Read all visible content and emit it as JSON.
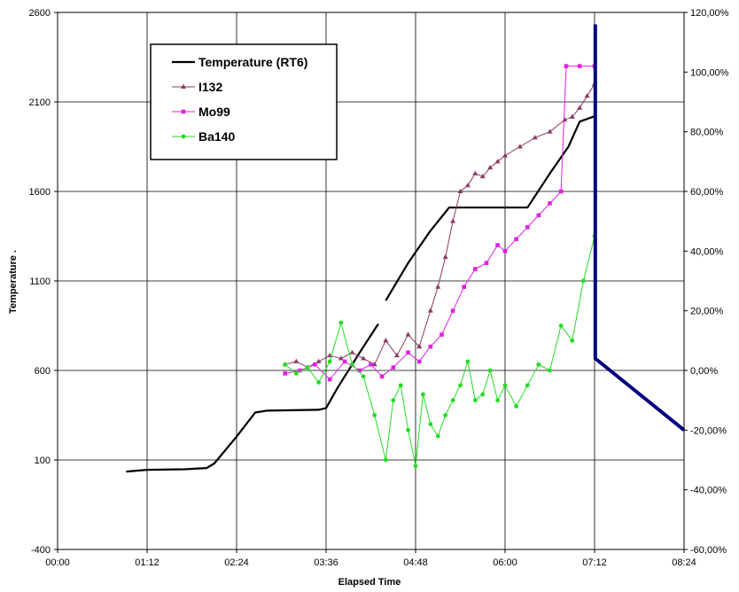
{
  "chart_data": {
    "type": "line",
    "xlabel": "Elapsed Time",
    "ylabel": "Temperature .",
    "x_ticks": [
      "00:00",
      "01:12",
      "02:24",
      "03:36",
      "04:48",
      "06:00",
      "07:12",
      "08:24"
    ],
    "xlim_hours": [
      0,
      8.4
    ],
    "ylim_left": [
      -400,
      2600
    ],
    "y_ticks_left": [
      "-400",
      "100",
      "600",
      "1100",
      "1600",
      "2100",
      "2600"
    ],
    "ylim_right": [
      -0.6,
      1.2
    ],
    "y_ticks_right": [
      "-60,00%",
      "-40,00%",
      "-20,00%",
      "0,00%",
      "20,00%",
      "40,00%",
      "60,00%",
      "80,00%",
      "100,00%",
      "120,00%"
    ],
    "grid": true,
    "legend_position": "top-left",
    "series": [
      {
        "name": "Temperature (RT6)",
        "axis": "left",
        "color": "#000000",
        "marker": "none",
        "x": [
          0.92,
          1.2,
          1.7,
          2.0,
          2.1,
          2.4,
          2.65,
          2.8,
          3.5,
          3.6,
          3.75,
          4.05,
          4.3
        ],
        "y": [
          35,
          45,
          48,
          55,
          80,
          230,
          365,
          375,
          380,
          390,
          500,
          700,
          860
        ],
        "x2": [
          4.4,
          4.7,
          5.0,
          5.25,
          5.6,
          6.0,
          6.3,
          6.6,
          6.85,
          7.0,
          7.2
        ],
        "y2": [
          990,
          1200,
          1380,
          1510,
          1510,
          1510,
          1510,
          1700,
          1850,
          1990,
          2020
        ]
      },
      {
        "name": "I132",
        "axis": "right",
        "color": "#8B3A62",
        "marker": "triangle",
        "x": [
          3.05,
          3.2,
          3.35,
          3.5,
          3.65,
          3.8,
          3.95,
          4.1,
          4.25,
          4.4,
          4.55,
          4.7,
          4.85,
          5.0,
          5.1,
          5.2,
          5.3,
          5.4,
          5.5,
          5.6,
          5.7,
          5.8,
          5.9,
          6.0,
          6.2,
          6.4,
          6.6,
          6.8,
          6.9,
          7.0,
          7.1,
          7.2
        ],
        "y": [
          0.02,
          0.03,
          0.01,
          0.03,
          0.05,
          0.04,
          0.06,
          0.04,
          0.02,
          0.1,
          0.05,
          0.12,
          0.08,
          0.2,
          0.28,
          0.38,
          0.5,
          0.6,
          0.62,
          0.66,
          0.65,
          0.68,
          0.7,
          0.72,
          0.75,
          0.78,
          0.8,
          0.84,
          0.85,
          0.88,
          0.92,
          0.96
        ]
      },
      {
        "name": "Mo99",
        "axis": "right",
        "color": "#E020E0",
        "marker": "square",
        "x": [
          3.05,
          3.25,
          3.45,
          3.65,
          3.85,
          4.05,
          4.2,
          4.35,
          4.5,
          4.7,
          4.85,
          5.0,
          5.15,
          5.3,
          5.45,
          5.6,
          5.75,
          5.9,
          6.0,
          6.15,
          6.3,
          6.45,
          6.6,
          6.75,
          6.82,
          7.0,
          7.2
        ],
        "y": [
          -0.01,
          0.0,
          0.02,
          -0.03,
          0.03,
          0.0,
          0.02,
          -0.02,
          0.01,
          0.06,
          0.03,
          0.08,
          0.12,
          0.2,
          0.28,
          0.34,
          0.36,
          0.42,
          0.4,
          0.44,
          0.48,
          0.52,
          0.56,
          0.6,
          1.02,
          1.02,
          1.02
        ]
      },
      {
        "name": "Ba140",
        "axis": "right",
        "color": "#22DD22",
        "marker": "circle",
        "x": [
          3.05,
          3.2,
          3.35,
          3.5,
          3.65,
          3.8,
          3.95,
          4.1,
          4.25,
          4.4,
          4.5,
          4.6,
          4.7,
          4.8,
          4.9,
          5.0,
          5.1,
          5.2,
          5.3,
          5.4,
          5.5,
          5.6,
          5.7,
          5.8,
          5.9,
          6.0,
          6.15,
          6.3,
          6.45,
          6.6,
          6.75,
          6.9,
          7.05,
          7.2
        ],
        "y": [
          0.02,
          -0.01,
          0.01,
          -0.04,
          0.03,
          0.16,
          0.02,
          -0.02,
          -0.15,
          -0.3,
          -0.1,
          -0.05,
          -0.2,
          -0.32,
          -0.08,
          -0.18,
          -0.22,
          -0.15,
          -0.1,
          -0.05,
          0.03,
          -0.1,
          -0.08,
          0.0,
          -0.1,
          -0.05,
          -0.12,
          -0.05,
          0.02,
          0.0,
          0.15,
          0.1,
          0.3,
          0.45
        ]
      },
      {
        "name": "",
        "axis": "right",
        "color": "#00007F",
        "marker": "none",
        "x": [
          7.21,
          7.21,
          8.4
        ],
        "y": [
          1.16,
          0.04,
          -0.2
        ]
      }
    ]
  }
}
